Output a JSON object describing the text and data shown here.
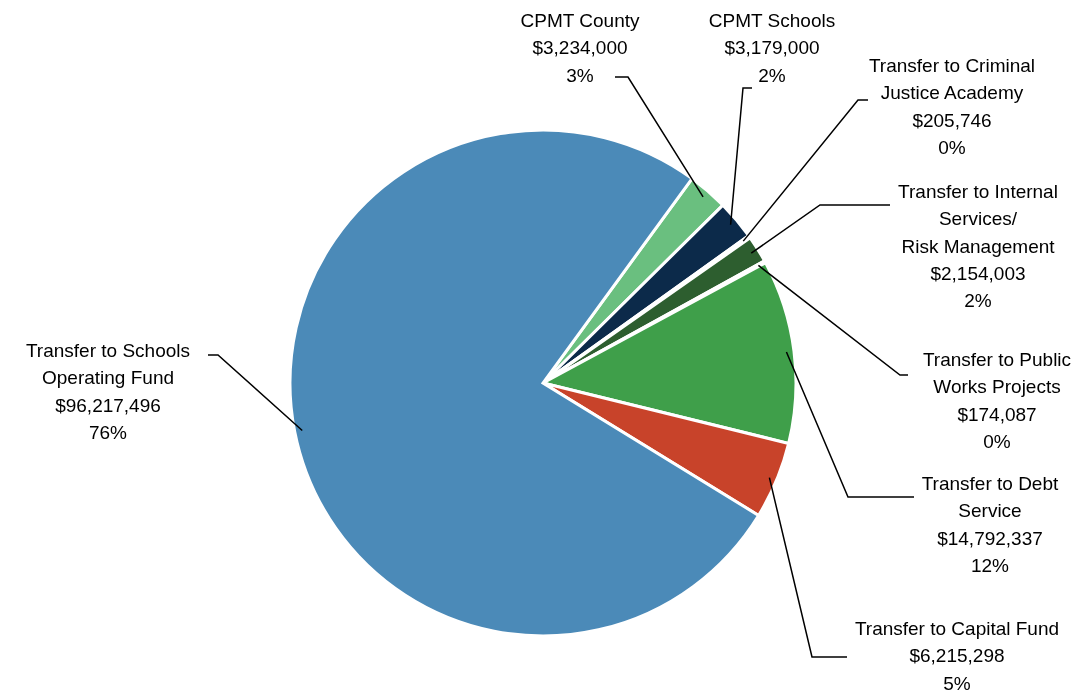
{
  "chart_data": {
    "type": "pie",
    "categories": [
      "CPMT County",
      "CPMT Schools",
      "Transfer to Criminal\nJustice Academy",
      "Transfer to Internal\nServices/\nRisk Management",
      "Transfer to Public\nWorks Projects",
      "Transfer to Debt\nService",
      "Transfer to Capital Fund",
      "Transfer to Schools\nOperating Fund"
    ],
    "values": [
      3234000,
      3179000,
      205746,
      2154003,
      174087,
      14792337,
      6215298,
      96217496
    ],
    "colors": [
      "#6abf7f",
      "#0c2a4a",
      "#1f4f2a",
      "#2d5e2f",
      "#8fbf7a",
      "#3f9f4a",
      "#c8432a",
      "#4b8ab8"
    ],
    "value_labels": [
      "$3,234,000\n3%",
      "$3,179,000\n2%",
      "$205,746\n0%",
      "$2,154,003\n2%",
      "$174,087\n0%",
      "$14,792,337\n12%",
      "$6,215,298\n5%",
      "$96,217,496\n76%"
    ]
  }
}
